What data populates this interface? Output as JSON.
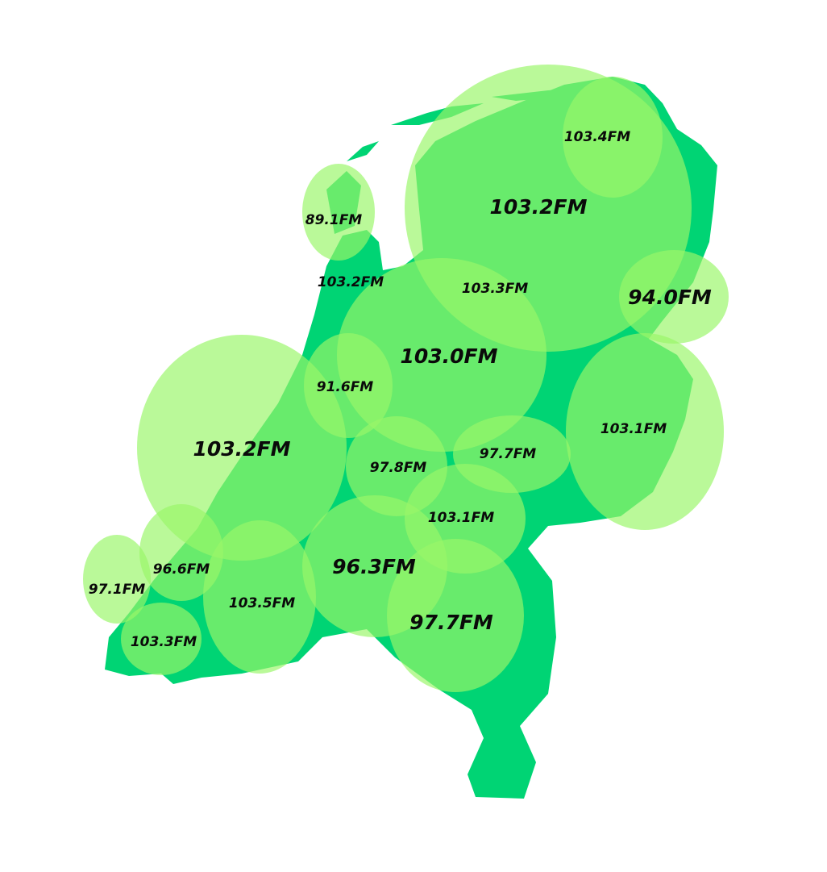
{
  "colors": {
    "land": "#00d474",
    "coverage": "#9af669",
    "label": "#0a0a0a"
  },
  "stations": [
    {
      "label": "103.4FM",
      "size": "small"
    },
    {
      "label": "103.2FM",
      "size": "large"
    },
    {
      "label": "89.1FM",
      "size": "small"
    },
    {
      "label": "103.2FM",
      "size": "small"
    },
    {
      "label": "103.3FM",
      "size": "small"
    },
    {
      "label": "94.0FM",
      "size": "large"
    },
    {
      "label": "103.0FM",
      "size": "large"
    },
    {
      "label": "91.6FM",
      "size": "small"
    },
    {
      "label": "103.1FM",
      "size": "small"
    },
    {
      "label": "103.2FM",
      "size": "large"
    },
    {
      "label": "97.8FM",
      "size": "small"
    },
    {
      "label": "97.7FM",
      "size": "small"
    },
    {
      "label": "103.1FM",
      "size": "small"
    },
    {
      "label": "96.3FM",
      "size": "large"
    },
    {
      "label": "97.7FM",
      "size": "large"
    },
    {
      "label": "96.6FM",
      "size": "small"
    },
    {
      "label": "97.1FM",
      "size": "small"
    },
    {
      "label": "103.5FM",
      "size": "small"
    },
    {
      "label": "103.3FM",
      "size": "small"
    }
  ]
}
